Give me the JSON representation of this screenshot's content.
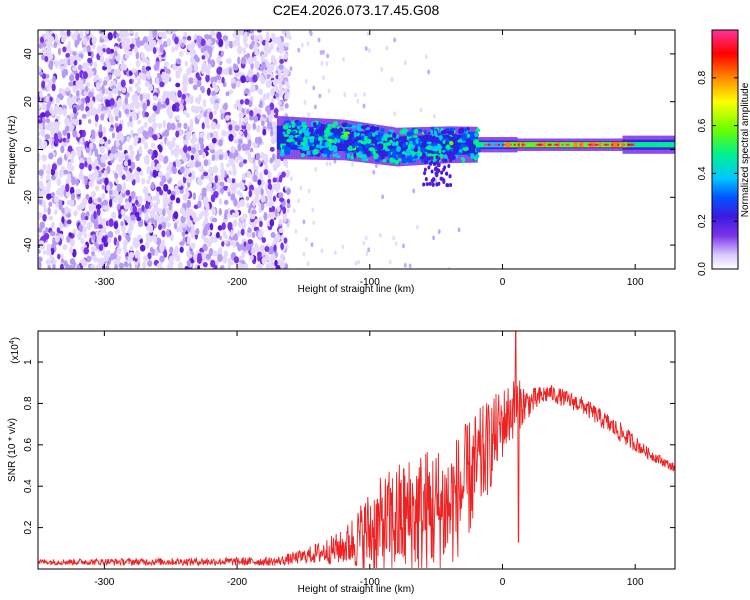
{
  "page_title": "C2E4.2026.073.17.45.G08",
  "chart_data": [
    {
      "type": "heatmap",
      "title": "C2E4.2026.073.17.45.G08",
      "xlabel": "Height of straight line (km)",
      "ylabel": "Frequency (Hz)",
      "xlim": [
        -350,
        130
      ],
      "ylim": [
        -50,
        50
      ],
      "xticks": [
        -300,
        -200,
        -100,
        0,
        100
      ],
      "yticks": [
        -40,
        -20,
        0,
        20,
        40
      ],
      "xtick_labels": [
        "-300",
        "-200",
        "-100",
        "0",
        "100"
      ],
      "ytick_labels": [
        "-40",
        "-20",
        "0",
        "20",
        "40"
      ],
      "colorbar": {
        "label": "Normalized spectral amplitude",
        "range": [
          0,
          1
        ],
        "ticks": [
          0.0,
          0.2,
          0.4,
          0.6,
          0.8
        ],
        "tick_labels": [
          "0.0",
          "0.2",
          "0.4",
          "0.6",
          "0.8"
        ],
        "colormap": [
          "#ffffff",
          "#d9c8ff",
          "#7a33e8",
          "#3a1ae0",
          "#0055ff",
          "#00c8ff",
          "#00f090",
          "#66ff00",
          "#ffff00",
          "#ff8800",
          "#ff0000",
          "#ff3399"
        ]
      },
      "features": {
        "noise_region_km": [
          -350,
          -165
        ],
        "signal_band_center_hz": [
          [
            -170,
            5
          ],
          [
            -120,
            4
          ],
          [
            -80,
            1
          ],
          [
            -40,
            2
          ],
          [
            -20,
            2
          ],
          [
            0,
            2
          ],
          [
            50,
            2
          ],
          [
            130,
            2
          ]
        ]
      }
    },
    {
      "type": "line",
      "xlabel": "Height of straight line (km)",
      "ylabel": "SNR (10 * v/v)",
      "scale_label": "(x10",
      "scale_exp": "4",
      "scale_close": ")",
      "xlim": [
        -350,
        130
      ],
      "ylim": [
        0,
        1.15
      ],
      "xticks": [
        -300,
        -200,
        -100,
        0,
        100
      ],
      "yticks": [
        0.2,
        0.4,
        0.6,
        0.8,
        1.0
      ],
      "xtick_labels": [
        "-300",
        "-200",
        "-100",
        "0",
        "100"
      ],
      "ytick_labels": [
        "0.2",
        "0.4",
        "0.6",
        "0.8",
        "1"
      ],
      "series": [
        {
          "name": "SNR",
          "color": "#ee2222",
          "envelope": [
            {
              "x": -350,
              "base": 0.03,
              "amp": 0.02
            },
            {
              "x": -170,
              "base": 0.03,
              "amp": 0.03
            },
            {
              "x": -150,
              "base": 0.05,
              "amp": 0.05
            },
            {
              "x": -120,
              "base": 0.08,
              "amp": 0.12
            },
            {
              "x": -100,
              "base": 0.12,
              "amp": 0.3
            },
            {
              "x": -80,
              "base": 0.15,
              "amp": 0.4
            },
            {
              "x": -60,
              "base": 0.18,
              "amp": 0.45
            },
            {
              "x": -40,
              "base": 0.2,
              "amp": 0.45
            },
            {
              "x": -20,
              "base": 0.4,
              "amp": 0.4
            },
            {
              "x": 0,
              "base": 0.65,
              "amp": 0.25
            },
            {
              "x": 10,
              "base": 0.75,
              "amp": 0.2
            },
            {
              "x": 20,
              "base": 0.78,
              "amp": 0.1
            },
            {
              "x": 35,
              "base": 0.84,
              "amp": 0.06
            },
            {
              "x": 60,
              "base": 0.78,
              "amp": 0.06
            },
            {
              "x": 90,
              "base": 0.64,
              "amp": 0.07
            },
            {
              "x": 110,
              "base": 0.55,
              "amp": 0.04
            },
            {
              "x": 130,
              "base": 0.48,
              "amp": 0.03
            }
          ],
          "peak": {
            "x": 10,
            "y": 1.15
          },
          "dip": {
            "x": 12,
            "y": 0.13
          }
        }
      ]
    }
  ]
}
